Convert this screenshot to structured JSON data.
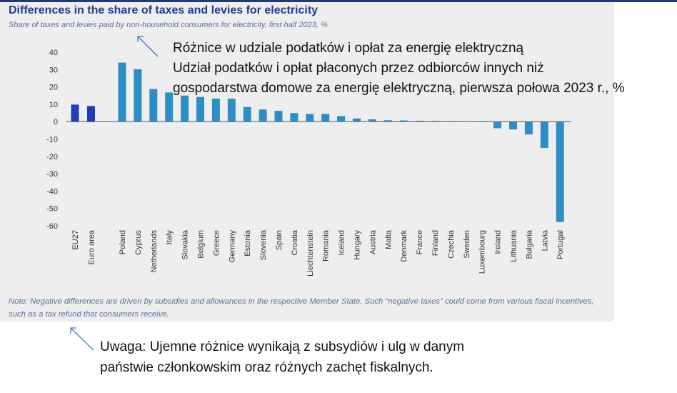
{
  "header": {
    "title": "Differences in the share of taxes and levies for electricity",
    "subtitle": "Share of taxes and levies paid by non-household consumers for electricity, first half 2023, %"
  },
  "note": "Note: Negative differences are driven by subsidies and allowances in the respective Member State. Such “negative taxes” could come from various fiscal incentives, such as a tax refund that consumers receive.",
  "translation": {
    "title_lines": [
      "Różnice w udziale podatków i opłat za energię elektryczną",
      "Udział podatków i opłat płaconych przez odbiorców innych niż",
      "gospodarstwa domowe za energię elektryczną, pierwsza połowa 2023 r., %"
    ],
    "note_lines": [
      "Uwaga: Ujemne różnice wynikają z subsydiów i ulg w danym",
      "państwie członkowskim oraz różnych zachęt fiskalnych."
    ]
  },
  "colors": {
    "aggregate_bar": "#1f3fb8",
    "country_bar": "#2b8fc6",
    "title": "#1f3a93",
    "arrow": "#4472c4"
  },
  "chart_data": {
    "type": "bar",
    "categories": [
      "EU27",
      "Euro area",
      "Poland",
      "Cyprus",
      "Netherlands",
      "Italy",
      "Slovakia",
      "Belgium",
      "Greece",
      "Germany",
      "Estonia",
      "Slovenia",
      "Spain",
      "Croatia",
      "Liechtenstein",
      "Romania",
      "Iceland",
      "Hungary",
      "Austria",
      "Malta",
      "Denmark",
      "France",
      "Finland",
      "Czechia",
      "Sweden",
      "Luxembourg",
      "Ireland",
      "Lithuania",
      "Bulgaria",
      "Latvia",
      "Portugal"
    ],
    "values": [
      9.8,
      9.0,
      34.0,
      30.2,
      18.8,
      16.8,
      15.0,
      14.2,
      13.3,
      13.2,
      8.4,
      7.0,
      6.2,
      4.9,
      4.4,
      4.4,
      3.2,
      1.8,
      1.3,
      0.8,
      0.7,
      0.5,
      0.4,
      0.3,
      0.2,
      -0.3,
      -3.8,
      -4.5,
      -7.4,
      -15.2,
      -57.8
    ],
    "groups": [
      "aggregate",
      "aggregate",
      "country",
      "country",
      "country",
      "country",
      "country",
      "country",
      "country",
      "country",
      "country",
      "country",
      "country",
      "country",
      "country",
      "country",
      "country",
      "country",
      "country",
      "country",
      "country",
      "country",
      "country",
      "country",
      "country",
      "country",
      "country",
      "country",
      "country",
      "country",
      "country"
    ],
    "yticks": [
      "40",
      "30",
      "20",
      "10",
      "0",
      "-10",
      "-20",
      "-30",
      "-40",
      "-50",
      "-60"
    ],
    "ylim": [
      -60,
      40
    ],
    "grid": false,
    "legend": "none"
  }
}
